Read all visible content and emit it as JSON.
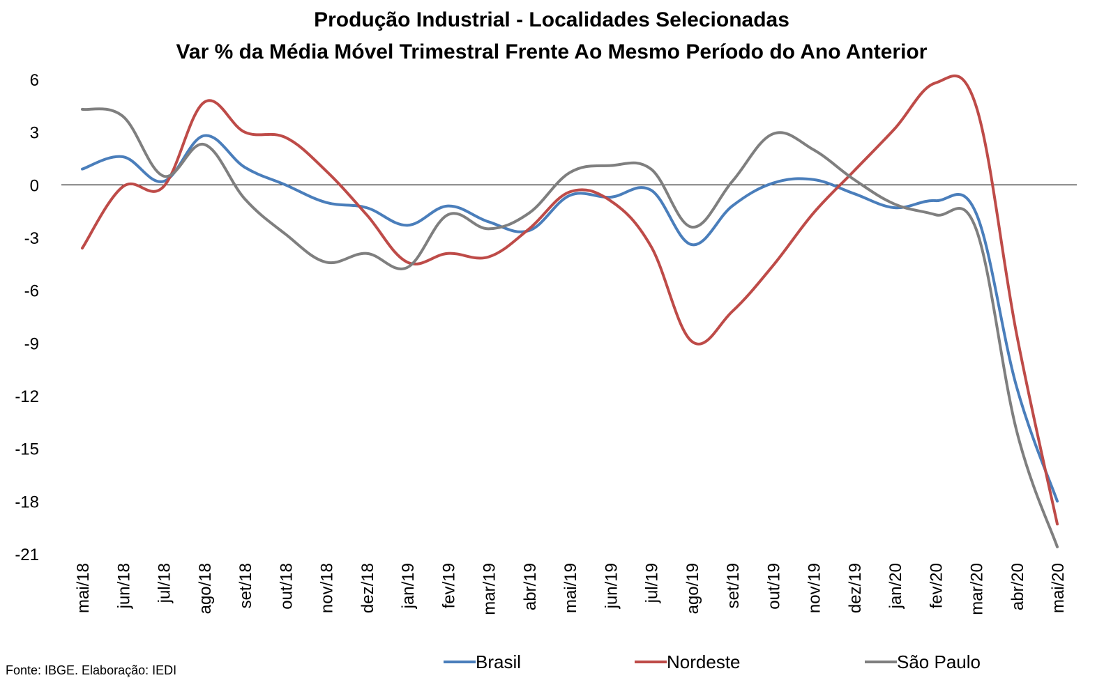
{
  "chart_data": {
    "type": "line",
    "title": "Produção Industrial - Localidades Selecionadas",
    "subtitle": "Var % da Média Móvel Trimestral Frente Ao Mesmo Período do Ano Anterior",
    "source": "Fonte: IBGE. Elaboração: IEDI",
    "xlabel": "",
    "ylabel": "",
    "ylim": [
      -21,
      6
    ],
    "y_ticks": [
      "6",
      "3",
      "0",
      "-3",
      "-6",
      "-9",
      "-12",
      "-15",
      "-18",
      "-21"
    ],
    "grid": false,
    "zero_line": true,
    "legend_position": "bottom",
    "categories": [
      "mai/18",
      "jun/18",
      "jul/18",
      "ago/18",
      "set/18",
      "out/18",
      "nov/18",
      "dez/18",
      "jan/19",
      "fev/19",
      "mar/19",
      "abr/19",
      "mai/19",
      "jun/19",
      "jul/19",
      "ago/19",
      "set/19",
      "out/19",
      "nov/19",
      "dez/19",
      "jan/20",
      "fev/20",
      "mar/20",
      "abr/20",
      "mai/20"
    ],
    "series": [
      {
        "name": "Brasil",
        "color": "#4a7ebb",
        "values": [
          0.9,
          1.6,
          0.2,
          2.8,
          1.0,
          0.0,
          -1.0,
          -1.3,
          -2.3,
          -1.2,
          -2.1,
          -2.6,
          -0.6,
          -0.7,
          -0.3,
          -3.4,
          -1.2,
          0.1,
          0.3,
          -0.5,
          -1.3,
          -0.9,
          -1.6,
          -11.5,
          -18.0
        ]
      },
      {
        "name": "Nordeste",
        "color": "#be4b48",
        "values": [
          -3.6,
          -0.1,
          -0.1,
          4.7,
          3.0,
          2.7,
          0.8,
          -1.7,
          -4.4,
          -3.9,
          -4.1,
          -2.5,
          -0.4,
          -0.9,
          -3.5,
          -8.9,
          -7.2,
          -4.6,
          -1.6,
          0.8,
          3.2,
          5.8,
          4.5,
          -8.5,
          -19.3
        ]
      },
      {
        "name": "São Paulo",
        "color": "#7f7f7f",
        "values": [
          4.3,
          3.9,
          0.5,
          2.3,
          -0.8,
          -2.8,
          -4.4,
          -3.9,
          -4.7,
          -1.7,
          -2.5,
          -1.6,
          0.7,
          1.1,
          0.9,
          -2.4,
          0.2,
          2.9,
          2.0,
          0.3,
          -1.1,
          -1.7,
          -2.5,
          -14.0,
          -20.6
        ]
      }
    ]
  }
}
